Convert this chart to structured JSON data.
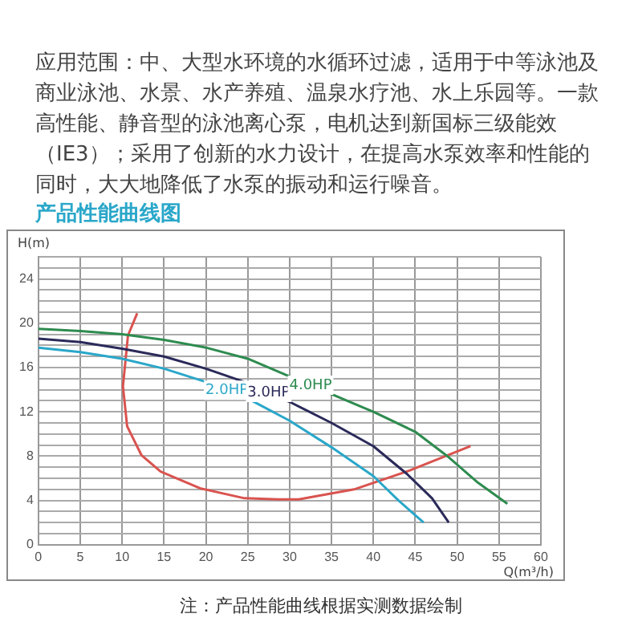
{
  "chart_data": {
    "type": "line",
    "title": "产品性能曲线图",
    "xlabel": "Q(m³/h)",
    "ylabel": "H(m)",
    "annotations": [
      "应用范围：中、大型水环境的水循环过滤，适用于中等泳池及商业泳池、水景、水产养殖、温泉水疗池、水上乐园等。一款高性能、静音型的泳池离心泵，电机达到新国标三级能效（IE3）；采用了创新的水力设计，在提高水泵效率和性能的同时，大大地降低了水泵的振动和运行噪音。",
      "注：产品性能曲线根据实测数据绘制"
    ],
    "xlim": [
      0,
      60
    ],
    "xticks": [
      0,
      5,
      10,
      15,
      20,
      25,
      30,
      35,
      40,
      45,
      50,
      55,
      60
    ],
    "ylim": [
      0,
      26
    ],
    "yticks": [
      0,
      {
        "value": 1,
        "label": null
      },
      {
        "value": 2,
        "label": null
      },
      {
        "value": 3,
        "label": null
      },
      4,
      {
        "value": 5,
        "label": null
      },
      {
        "value": 6,
        "label": null
      },
      {
        "value": 7,
        "label": null
      },
      8,
      {
        "value": 9,
        "label": null
      },
      {
        "value": 10,
        "label": null
      },
      {
        "value": 11,
        "label": null
      },
      12,
      {
        "value": 13,
        "label": null
      },
      {
        "value": 14,
        "label": null
      },
      {
        "value": 15,
        "label": null
      },
      16,
      {
        "value": 17,
        "label": null
      },
      {
        "value": 18,
        "label": null
      },
      {
        "value": 19,
        "label": null
      },
      20,
      {
        "value": 21,
        "label": null
      },
      {
        "value": 22,
        "label": null
      },
      {
        "value": 23,
        "label": null
      },
      24,
      {
        "value": 25,
        "label": null
      },
      {
        "value": 26,
        "label": null
      }
    ],
    "grid": true,
    "legend": false,
    "marker": "none",
    "series": [
      {
        "name": "2.0HP",
        "color": "#2aa7c9",
        "x": [
          0,
          5,
          10,
          15,
          20,
          25,
          30,
          35,
          40,
          43,
          46
        ],
        "values": [
          17.8,
          17.4,
          16.8,
          15.9,
          14.7,
          13.2,
          11.2,
          8.8,
          6.2,
          4.0,
          2.0
        ]
      },
      {
        "name": "3.0HP",
        "color": "#2b2a5a",
        "x": [
          0,
          5,
          10,
          15,
          20,
          25,
          30,
          35,
          40,
          44,
          47,
          49
        ],
        "values": [
          18.6,
          18.3,
          17.7,
          17.0,
          15.9,
          14.6,
          12.9,
          11.0,
          8.9,
          6.4,
          4.2,
          2.0
        ]
      },
      {
        "name": "4.0HP",
        "color": "#2e8b4f",
        "x": [
          0,
          5,
          10,
          15,
          20,
          25,
          30,
          35,
          40,
          45,
          49,
          52.5,
          56
        ],
        "values": [
          19.5,
          19.3,
          19.0,
          18.5,
          17.8,
          16.8,
          15.2,
          13.6,
          12.0,
          10.2,
          7.9,
          5.6,
          3.7
        ]
      },
      {
        "color": "#d9534f",
        "x": [
          11.8,
          10.7,
          10.1,
          10.6,
          12.3,
          14.6,
          19.3,
          24.6,
          28.6,
          31.1,
          37.7,
          44.3,
          51.6
        ],
        "values": [
          20.9,
          18.9,
          14.3,
          10.7,
          8.1,
          6.6,
          5.1,
          4.2,
          4.1,
          4.1,
          5.0,
          6.7,
          8.9
        ]
      }
    ]
  }
}
